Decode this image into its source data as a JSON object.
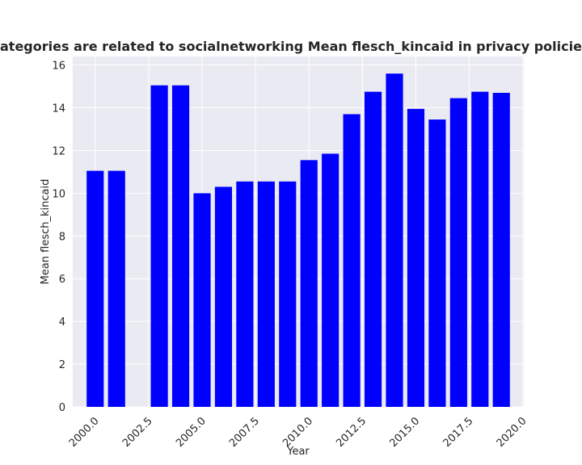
{
  "chart_data": {
    "type": "bar",
    "title": "when categories are related to socialnetworking Mean flesch_kincaid in privacy policies by Ye",
    "xlabel": "Year",
    "ylabel": "Mean flesch_kincaid",
    "x": [
      2000,
      2001,
      2003,
      2004,
      2005,
      2006,
      2007,
      2008,
      2009,
      2010,
      2011,
      2012,
      2013,
      2014,
      2015,
      2016,
      2017,
      2018,
      2019
    ],
    "values": [
      11.05,
      11.05,
      15.05,
      15.05,
      10.0,
      10.3,
      10.55,
      10.55,
      10.55,
      11.55,
      11.85,
      13.7,
      14.75,
      15.6,
      13.95,
      13.45,
      14.45,
      14.75,
      14.7
    ],
    "xlim": [
      1998.95,
      2020.05
    ],
    "ylim": [
      0,
      16.4
    ],
    "xticks": [
      2000.0,
      2002.5,
      2005.0,
      2007.5,
      2010.0,
      2012.5,
      2015.0,
      2017.5,
      2020.0
    ],
    "xtick_labels": [
      "2000.0",
      "2002.5",
      "2005.0",
      "2007.5",
      "2010.0",
      "2012.5",
      "2015.0",
      "2017.5",
      "2020.0"
    ],
    "yticks": [
      0,
      2,
      4,
      6,
      8,
      10,
      12,
      14,
      16
    ],
    "ytick_labels": [
      "0",
      "2",
      "4",
      "6",
      "8",
      "10",
      "12",
      "14",
      "16"
    ],
    "bar_color": "#0000ff",
    "background_color": "#eaeaf2",
    "grid": true
  }
}
